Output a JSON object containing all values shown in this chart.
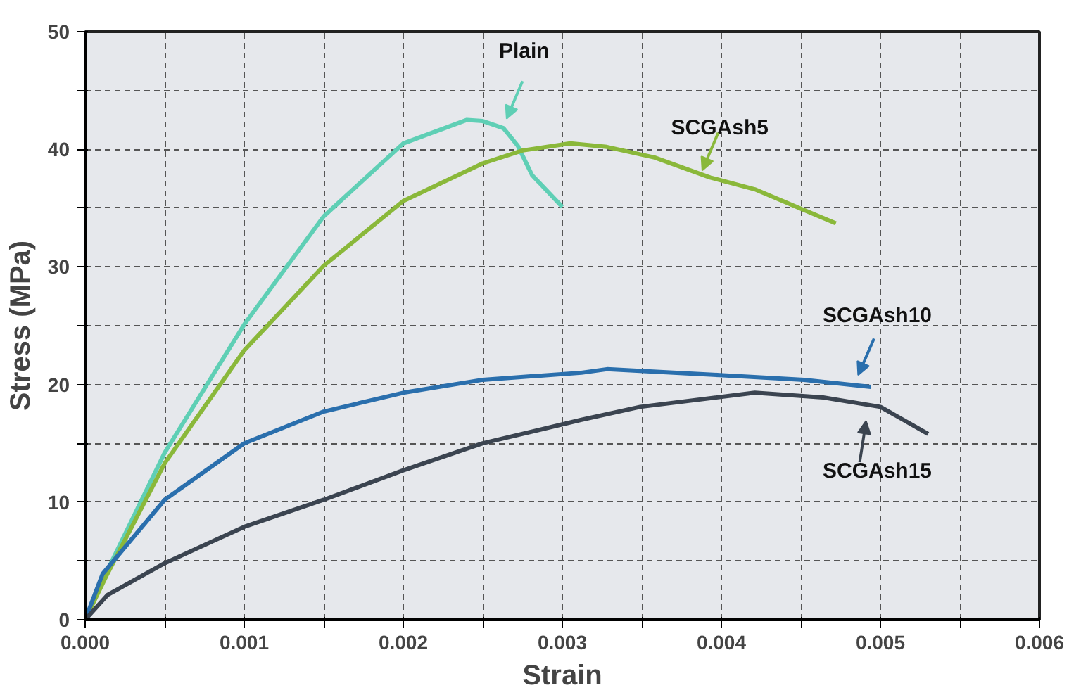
{
  "chart_data": {
    "type": "line",
    "xlabel": "Strain",
    "ylabel": "Stress (MPa)",
    "xlim": [
      0,
      0.006
    ],
    "ylim": [
      0,
      50
    ],
    "xticks": [
      {
        "value": 0,
        "label": "0.000"
      },
      {
        "value": 0.0005,
        "label": null
      },
      {
        "value": 0.001,
        "label": "0.001"
      },
      {
        "value": 0.0015,
        "label": null
      },
      {
        "value": 0.002,
        "label": "0.002"
      },
      {
        "value": 0.0025,
        "label": null
      },
      {
        "value": 0.003,
        "label": "0.003"
      },
      {
        "value": 0.0035,
        "label": null
      },
      {
        "value": 0.004,
        "label": "0.004"
      },
      {
        "value": 0.0045,
        "label": null
      },
      {
        "value": 0.005,
        "label": "0.005"
      },
      {
        "value": 0.0055,
        "label": null
      },
      {
        "value": 0.006,
        "label": "0.006"
      }
    ],
    "yticks": [
      0,
      {
        "value": 5,
        "label": null
      },
      10,
      {
        "value": 15,
        "label": null
      },
      20,
      {
        "value": 25,
        "label": null
      },
      30,
      {
        "value": 35,
        "label": null
      },
      40,
      {
        "value": 45,
        "label": null
      },
      50
    ],
    "grid": true,
    "marker": "none",
    "line_style": "solid",
    "series": [
      {
        "name": "Plain",
        "color": "#5fcfb5",
        "x": [
          0,
          0.00014,
          0.0005,
          0.001,
          0.0015,
          0.002,
          0.0024,
          0.0025,
          0.00263,
          0.00272,
          0.00281,
          0.003
        ],
        "values": [
          0,
          4.2,
          14.2,
          25.1,
          34.3,
          40.5,
          42.5,
          42.4,
          41.8,
          40.3,
          37.8,
          35.1
        ]
      },
      {
        "name": "SCGAsh5",
        "color": "#8ab83a",
        "x": [
          0,
          0.00014,
          0.0005,
          0.001,
          0.0015,
          0.002,
          0.0025,
          0.00275,
          0.00305,
          0.00328,
          0.00358,
          0.00393,
          0.00421,
          0.00449,
          0.00472
        ],
        "values": [
          0,
          3.9,
          13.3,
          22.9,
          30.1,
          35.6,
          38.8,
          39.9,
          40.5,
          40.2,
          39.3,
          37.6,
          36.6,
          35.0,
          33.7
        ]
      },
      {
        "name": "SCGAsh10",
        "color": "#2a6fad",
        "x": [
          0,
          0.00011,
          0.0005,
          0.001,
          0.0015,
          0.002,
          0.0025,
          0.00312,
          0.00328,
          0.00399,
          0.00452,
          0.00494
        ],
        "values": [
          0,
          3.9,
          10.2,
          15.0,
          17.7,
          19.3,
          20.4,
          21.0,
          21.3,
          20.8,
          20.4,
          19.8
        ]
      },
      {
        "name": "SCGAsh15",
        "color": "#3b4450",
        "x": [
          0,
          0.00014,
          0.0005,
          0.001,
          0.0015,
          0.002,
          0.0025,
          0.00312,
          0.00349,
          0.00421,
          0.00464,
          0.005,
          0.0053
        ],
        "values": [
          0,
          2.1,
          4.8,
          7.9,
          10.2,
          12.7,
          15.0,
          17.0,
          18.1,
          19.3,
          18.9,
          18.1,
          15.8
        ]
      }
    ]
  }
}
